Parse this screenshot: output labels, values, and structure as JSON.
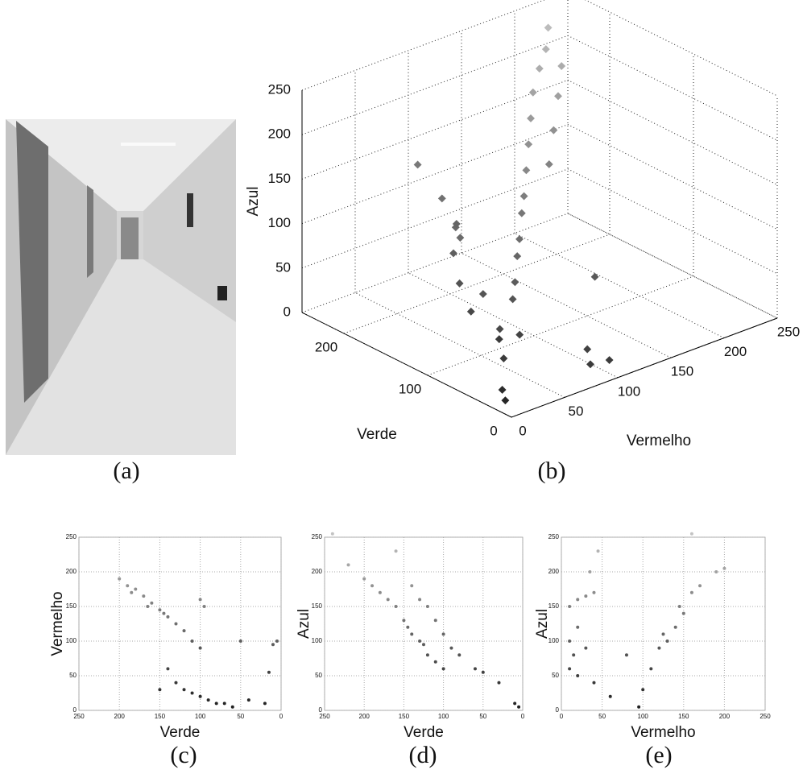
{
  "captions": [
    "(a)",
    "(b)",
    "(c)",
    "(d)",
    "(e)"
  ],
  "chart_data": [
    {
      "type": "scatter3d",
      "xlabel": "Vermelho",
      "ylabel": "Verde",
      "zlabel": "Azul",
      "xlim": [
        0,
        250
      ],
      "ylim": [
        0,
        250
      ],
      "zlim": [
        0,
        250
      ],
      "xticks": [
        0,
        50,
        100,
        150,
        200,
        250
      ],
      "yticks": [
        0,
        100,
        200
      ],
      "zticks": [
        0,
        50,
        100,
        150,
        200,
        250
      ],
      "grid": true,
      "x": [
        10,
        15,
        40,
        60,
        80,
        90,
        100,
        110,
        120,
        130,
        140,
        150,
        160,
        170,
        180,
        190,
        200,
        30,
        40,
        50,
        35,
        45,
        30,
        60,
        70,
        20,
        90,
        100,
        95,
        110,
        130,
        150,
        170,
        185,
        25,
        55
      ],
      "y": [
        20,
        30,
        60,
        90,
        100,
        110,
        120,
        130,
        140,
        150,
        160,
        170,
        180,
        190,
        195,
        200,
        210,
        100,
        120,
        130,
        110,
        140,
        150,
        110,
        150,
        40,
        20,
        10,
        30,
        40,
        120,
        140,
        160,
        175,
        80,
        60
      ],
      "z": [
        5,
        10,
        20,
        30,
        50,
        60,
        80,
        90,
        110,
        120,
        140,
        160,
        180,
        200,
        220,
        235,
        250,
        90,
        110,
        130,
        150,
        160,
        200,
        60,
        100,
        60,
        10,
        15,
        20,
        90,
        170,
        190,
        210,
        230,
        70,
        40
      ]
    },
    {
      "type": "scatter",
      "xlabel": "Verde",
      "ylabel": "Vermelho",
      "xlim": [
        250,
        0
      ],
      "ylim": [
        0,
        250
      ],
      "xticks": [
        250,
        200,
        150,
        100,
        50,
        0
      ],
      "yticks": [
        0,
        50,
        100,
        150,
        200,
        250
      ],
      "grid": true,
      "x": [
        200,
        190,
        180,
        170,
        160,
        150,
        140,
        130,
        120,
        110,
        100,
        130,
        120,
        110,
        100,
        90,
        80,
        70,
        60,
        40,
        20,
        10,
        5,
        15,
        140,
        150,
        95,
        100,
        50,
        185,
        165,
        145
      ],
      "y": [
        190,
        180,
        175,
        165,
        155,
        145,
        135,
        125,
        115,
        100,
        90,
        40,
        30,
        25,
        20,
        15,
        10,
        10,
        5,
        15,
        10,
        95,
        100,
        55,
        60,
        30,
        150,
        160,
        100,
        170,
        150,
        140
      ]
    },
    {
      "type": "scatter",
      "xlabel": "Verde",
      "ylabel": "Azul",
      "xlim": [
        250,
        0
      ],
      "ylim": [
        0,
        250
      ],
      "xticks": [
        250,
        200,
        150,
        100,
        50,
        0
      ],
      "yticks": [
        0,
        50,
        100,
        150,
        200,
        250
      ],
      "grid": true,
      "x": [
        240,
        220,
        200,
        180,
        160,
        150,
        140,
        130,
        120,
        110,
        100,
        160,
        140,
        130,
        120,
        110,
        100,
        90,
        80,
        60,
        50,
        30,
        10,
        5,
        170,
        190,
        145,
        125
      ],
      "y": [
        255,
        210,
        190,
        170,
        150,
        130,
        110,
        100,
        80,
        70,
        60,
        230,
        180,
        160,
        150,
        130,
        110,
        90,
        80,
        60,
        55,
        40,
        10,
        5,
        160,
        180,
        120,
        95
      ]
    },
    {
      "type": "scatter",
      "xlabel": "Vermelho",
      "ylabel": "Azul",
      "xlim": [
        0,
        250
      ],
      "ylim": [
        0,
        250
      ],
      "xticks": [
        0,
        50,
        100,
        150,
        200,
        250
      ],
      "yticks": [
        0,
        50,
        100,
        150,
        200,
        250
      ],
      "grid": true,
      "x": [
        10,
        20,
        30,
        40,
        45,
        35,
        20,
        10,
        15,
        10,
        20,
        30,
        40,
        100,
        110,
        120,
        130,
        140,
        150,
        160,
        170,
        190,
        200,
        95,
        60,
        80,
        160,
        125,
        145
      ],
      "y": [
        150,
        160,
        165,
        170,
        230,
        200,
        120,
        100,
        80,
        60,
        50,
        90,
        40,
        30,
        60,
        90,
        100,
        120,
        140,
        170,
        180,
        200,
        205,
        5,
        20,
        80,
        255,
        110,
        150
      ]
    }
  ]
}
